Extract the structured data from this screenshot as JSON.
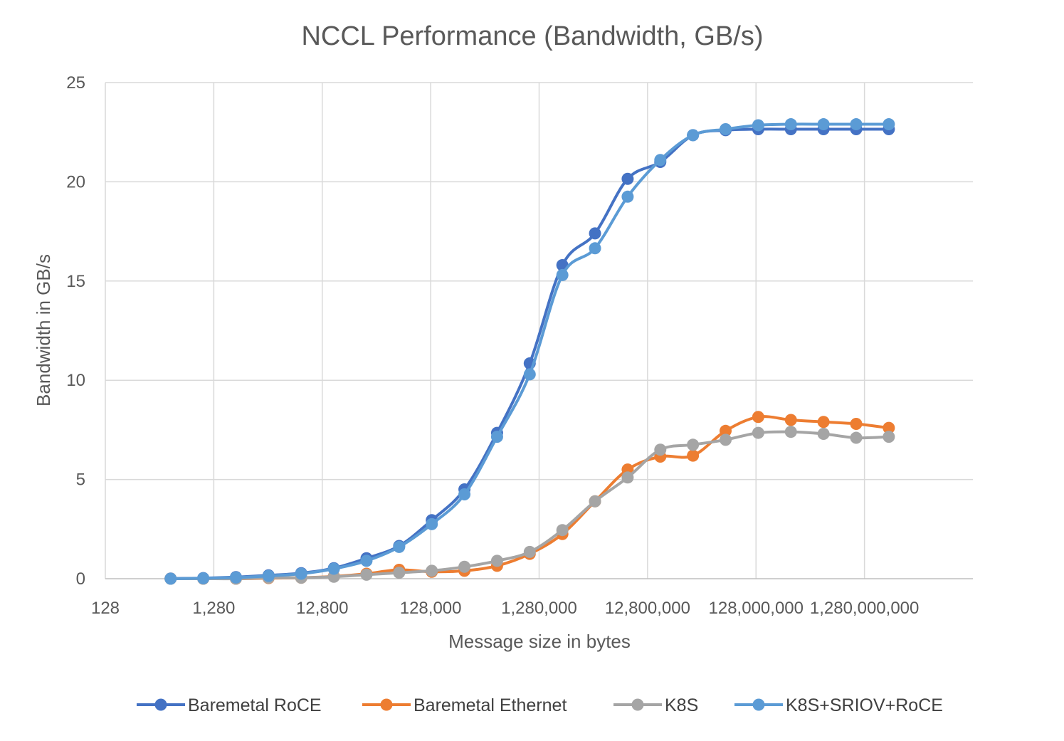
{
  "chart_data": {
    "type": "line",
    "title": "NCCL Performance  (Bandwidth, GB/s)",
    "xlabel": "Message size in bytes",
    "ylabel": "Bandwidth in GB/s",
    "x_scale": "log10",
    "x_tick_values": [
      128,
      1280,
      12800,
      128000,
      1280000,
      12800000,
      128000000,
      1280000000
    ],
    "x_tick_labels": [
      "128",
      "1,280",
      "12,800",
      "128,000",
      "1,280,000",
      "12,800,000",
      "128,000,000",
      "1,280,000,000"
    ],
    "xlim": [
      128,
      12800000000
    ],
    "ylim": [
      0,
      25
    ],
    "y_ticks": [
      0,
      5,
      10,
      15,
      20,
      25
    ],
    "y_tick_labels": [
      "0",
      "5",
      "10",
      "15",
      "20",
      "25"
    ],
    "grid": true,
    "legend_position": "bottom",
    "x": [
      512,
      1024,
      2048,
      4096,
      8192,
      16384,
      32768,
      65536,
      131072,
      262144,
      524288,
      1048576,
      2097152,
      4194304,
      8388608,
      16777216,
      33554432,
      67108864,
      134217728,
      268435456,
      536870912,
      1073741824,
      2147483648
    ],
    "series": [
      {
        "name": "Baremetal RoCE",
        "color": "#4472C4",
        "values": [
          0.01,
          0.03,
          0.08,
          0.17,
          0.28,
          0.53,
          1.03,
          1.65,
          2.95,
          4.5,
          7.35,
          10.85,
          15.8,
          17.4,
          20.15,
          21.0,
          22.35,
          22.6,
          22.65,
          22.65,
          22.65,
          22.65,
          22.65
        ]
      },
      {
        "name": "Baremetal Ethernet",
        "color": "#ED7D31",
        "values": [
          0.0,
          0.0,
          0.0,
          0.03,
          0.05,
          0.12,
          0.25,
          0.45,
          0.35,
          0.4,
          0.65,
          1.25,
          2.25,
          3.9,
          5.5,
          6.15,
          6.2,
          7.45,
          8.15,
          8.0,
          7.9,
          7.8,
          7.6
        ]
      },
      {
        "name": "K8S",
        "color": "#A5A5A5",
        "values": [
          0.0,
          0.0,
          0.0,
          0.05,
          0.05,
          0.1,
          0.2,
          0.3,
          0.4,
          0.6,
          0.9,
          1.35,
          2.45,
          3.9,
          5.1,
          6.5,
          6.75,
          7.0,
          7.35,
          7.4,
          7.3,
          7.1,
          7.15
        ]
      },
      {
        "name": "K8S+SRIOV+RoCE",
        "color": "#5B9BD5",
        "values": [
          0.0,
          0.02,
          0.06,
          0.14,
          0.25,
          0.5,
          0.9,
          1.6,
          2.75,
          4.25,
          7.15,
          10.3,
          15.3,
          16.65,
          19.25,
          21.1,
          22.35,
          22.65,
          22.85,
          22.9,
          22.9,
          22.9,
          22.9
        ]
      }
    ]
  }
}
